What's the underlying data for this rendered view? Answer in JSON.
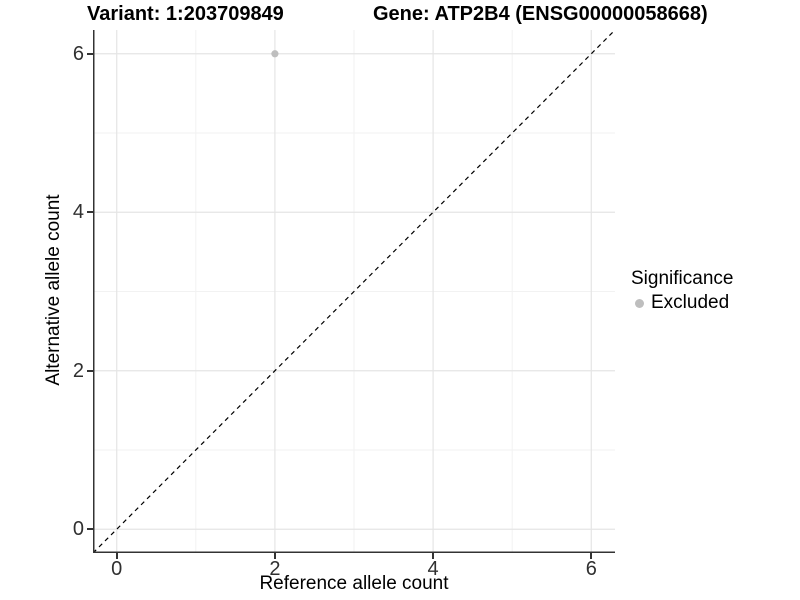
{
  "chart_data": {
    "type": "scatter",
    "title_left": "Variant: 1:203709849",
    "title_right": "Gene: ATP2B4 (ENSG00000058668)",
    "xlabel": "Reference allele count",
    "ylabel": "Alternative allele count",
    "xlim": [
      -0.3,
      6.3
    ],
    "ylim": [
      -0.3,
      6.3
    ],
    "xticks": [
      0,
      2,
      4,
      6
    ],
    "yticks": [
      0,
      2,
      4,
      6
    ],
    "x_minor_ticks": [
      1,
      3,
      5
    ],
    "y_minor_ticks": [
      1,
      3,
      5
    ],
    "grid": "major and minor, light grey on white",
    "identity_line": {
      "style": "dashed",
      "color": "#000000",
      "from": [
        -0.3,
        -0.3
      ],
      "to": [
        6.3,
        6.3
      ]
    },
    "points": [
      {
        "x": 2,
        "y": 6,
        "series": "Excluded",
        "color": "#bebebe",
        "radius": 3.6
      }
    ],
    "legend": {
      "title": "Significance",
      "position": "right",
      "items": [
        {
          "label": "Excluded",
          "color": "#bebebe",
          "marker": "circle"
        }
      ]
    },
    "colors": {
      "background": "#ffffff",
      "grid_major": "#e5e5e5",
      "grid_minor": "#f2f2f2",
      "axis_line": "#333333",
      "tick_mark": "#333333",
      "tick_label": "#303030",
      "text": "#000000"
    }
  }
}
